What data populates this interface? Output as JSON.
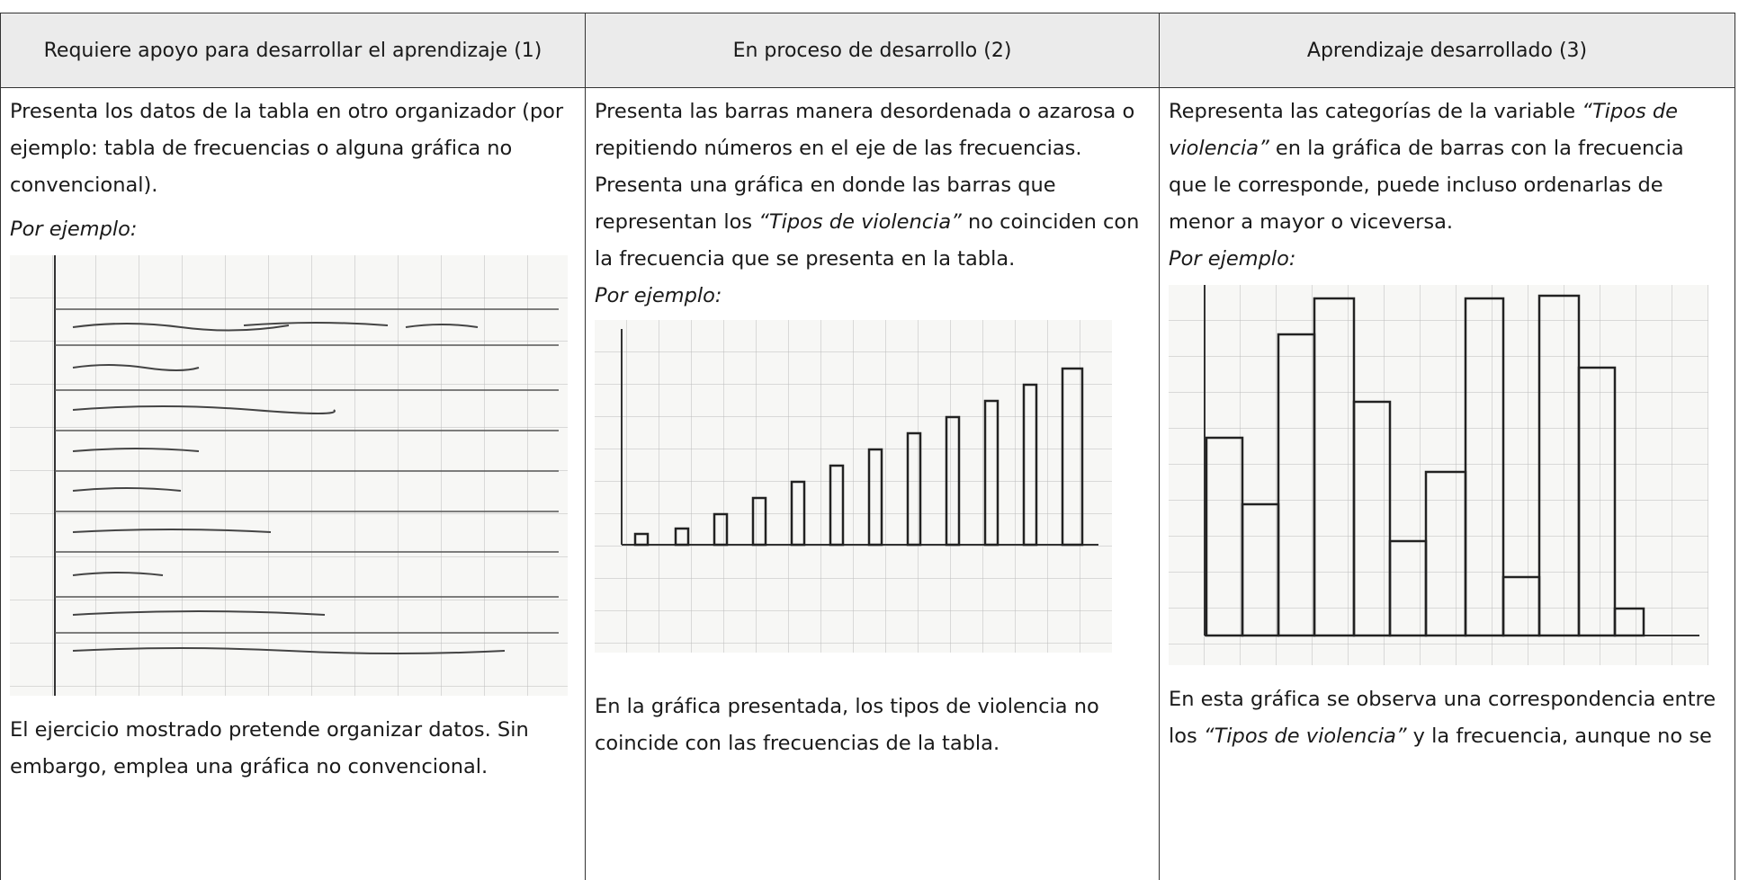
{
  "table": {
    "headers": [
      "Requiere apoyo para desarrollar el aprendizaje (1)",
      "En proceso de desarrollo (2)",
      "Aprendizaje desarrollado (3)"
    ],
    "columns": [
      {
        "paragraphs": [
          [
            "Presenta los datos de la tabla en otro organizador (por ejemplo: tabla de frecuencias o alguna gráfica no convencional)."
          ]
        ],
        "example_label": "Por ejemplo:",
        "caption": [
          "El ejercicio mostrado pretende organizar datos. Sin embargo, emplea una gráfica no convencional."
        ]
      },
      {
        "paragraphs": [
          [
            "Presenta las barras manera desordenada o azarosa o repitiendo números en el eje de las frecuencias."
          ],
          [
            "Presenta una gráfica en donde las barras que representan los ",
            "“Tipos de violencia”",
            " no coinciden con la frecuencia que se presenta en la tabla."
          ]
        ],
        "example_label": "Por ejemplo:",
        "caption": [
          "En la gráfica presentada, los tipos de violencia no coincide con las frecuencias de la tabla."
        ]
      },
      {
        "paragraphs": [
          [
            "Representa las categorías de la variable ",
            "“Tipos de violencia”",
            " en la gráfica de barras con la frecuencia que le corresponde, puede incluso ordenarlas de menor a mayor o viceversa."
          ]
        ],
        "example_label": "Por ejemplo:",
        "caption": [
          "En esta gráfica se observa una correspondencia entre los ",
          "“Tipos de violencia”",
          " y la frecuencia, aunque no se"
        ]
      }
    ]
  }
}
